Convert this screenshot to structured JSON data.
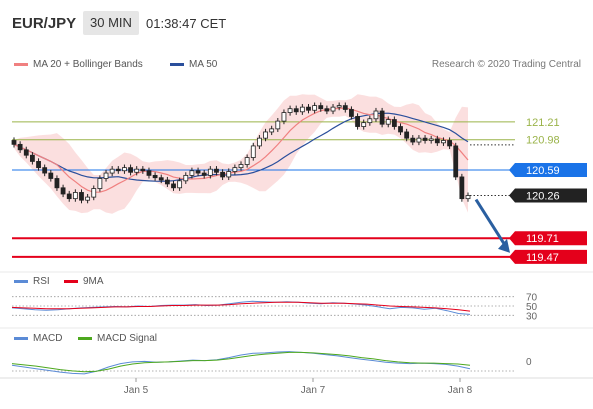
{
  "header": {
    "symbol": "EUR/JPY",
    "timeframe": "30 MIN",
    "time": "01:38:47 CET"
  },
  "legend": {
    "bollinger": "MA 20 + Bollinger Bands",
    "ma50": "MA 50",
    "rsi": "RSI",
    "rsi_ma": "9MA",
    "macd": "MACD",
    "macd_signal": "MACD Signal"
  },
  "credit": "Research © 2020 Trading Central",
  "colors": {
    "ma20": "#f08080",
    "band": "#f9d4d4",
    "ma50": "#2a4f9c",
    "support": "#e4001b",
    "pivot": "#1a73e8",
    "resistance": "#9ab349",
    "rsi": "#5b8bd6",
    "macd": "#5b8bd6",
    "macd_signal": "#4da81e",
    "last": "#222222"
  },
  "chart_data": [
    {
      "type": "candlestick",
      "x_ticks": [
        "Jan 5",
        "Jan 7",
        "Jan 8"
      ],
      "ylim": [
        119.3,
        121.75
      ],
      "levels": [
        {
          "label": "121.21",
          "value": 121.21,
          "kind": "resistance"
        },
        {
          "label": "120.98",
          "value": 120.98,
          "kind": "resistance"
        },
        {
          "label": "120.59",
          "value": 120.59,
          "kind": "pivot"
        },
        {
          "label": "120.26",
          "value": 120.26,
          "kind": "last"
        },
        {
          "label": "119.71",
          "value": 119.71,
          "kind": "support"
        },
        {
          "label": "119.47",
          "value": 119.47,
          "kind": "support"
        }
      ],
      "close": [
        120.92,
        120.85,
        120.78,
        120.7,
        120.62,
        120.55,
        120.48,
        120.36,
        120.28,
        120.22,
        120.3,
        120.2,
        120.24,
        120.35,
        120.48,
        120.55,
        120.6,
        120.58,
        120.62,
        120.56,
        120.6,
        120.58,
        120.52,
        120.49,
        120.46,
        120.41,
        120.36,
        120.45,
        120.52,
        120.58,
        120.55,
        120.52,
        120.6,
        120.56,
        120.5,
        120.57,
        120.62,
        120.66,
        120.75,
        120.9,
        121.0,
        121.08,
        121.12,
        121.22,
        121.33,
        121.38,
        121.34,
        121.4,
        121.36,
        121.42,
        121.38,
        121.35,
        121.4,
        121.42,
        121.37,
        121.28,
        121.15,
        121.2,
        121.25,
        121.35,
        121.18,
        121.24,
        121.15,
        121.08,
        121.0,
        120.95,
        121.0,
        120.97,
        120.99,
        120.94,
        120.97,
        120.9,
        120.5,
        120.22,
        120.26
      ],
      "ma20_tail": "declining toward 120.90",
      "ma50_tail": "flattening near 121.15"
    },
    {
      "type": "line",
      "name": "RSI",
      "y_ticks": [
        "70",
        "50",
        "30"
      ],
      "ylim": [
        20,
        80
      ],
      "series": [
        {
          "name": "RSI",
          "values": [
            46,
            44,
            42,
            41,
            42,
            44,
            46,
            47,
            48,
            49,
            48,
            50,
            49,
            51,
            52,
            52,
            53,
            51,
            52,
            55,
            58,
            60,
            59,
            58,
            59,
            58,
            56,
            55,
            57,
            56,
            54,
            52,
            48,
            44,
            47,
            46,
            43,
            45,
            40,
            34,
            32
          ]
        },
        {
          "name": "9MA",
          "values": [
            47,
            46,
            45,
            44,
            44,
            44,
            45,
            46,
            47,
            48,
            48,
            49,
            49,
            50,
            51,
            51,
            52,
            52,
            52,
            53,
            55,
            56,
            57,
            58,
            58,
            58,
            57,
            56,
            56,
            56,
            55,
            54,
            52,
            50,
            49,
            48,
            47,
            46,
            44,
            42,
            39
          ]
        }
      ]
    },
    {
      "type": "line",
      "name": "MACD",
      "y_ticks": [
        "0"
      ],
      "ylim": [
        -0.35,
        0.35
      ],
      "series": [
        {
          "name": "MACD",
          "values": [
            -0.1,
            -0.14,
            -0.18,
            -0.22,
            -0.26,
            -0.29,
            -0.3,
            -0.24,
            -0.14,
            -0.06,
            -0.02,
            -0.01,
            -0.03,
            -0.02,
            0.0,
            0.02,
            0.01,
            0.03,
            0.08,
            0.14,
            0.18,
            0.19,
            0.21,
            0.22,
            0.2,
            0.18,
            0.15,
            0.12,
            0.08,
            0.04,
            0.01,
            -0.03,
            -0.05,
            -0.06,
            -0.05,
            -0.06,
            -0.08,
            -0.12,
            -0.18
          ]
        },
        {
          "name": "MACD Signal",
          "values": [
            -0.06,
            -0.09,
            -0.12,
            -0.16,
            -0.2,
            -0.23,
            -0.25,
            -0.24,
            -0.19,
            -0.12,
            -0.07,
            -0.04,
            -0.03,
            -0.02,
            -0.01,
            0.01,
            0.01,
            0.02,
            0.05,
            0.09,
            0.13,
            0.16,
            0.18,
            0.2,
            0.2,
            0.19,
            0.17,
            0.15,
            0.12,
            0.08,
            0.05,
            0.01,
            -0.02,
            -0.04,
            -0.05,
            -0.05,
            -0.06,
            -0.07,
            -0.1
          ]
        }
      ]
    }
  ]
}
